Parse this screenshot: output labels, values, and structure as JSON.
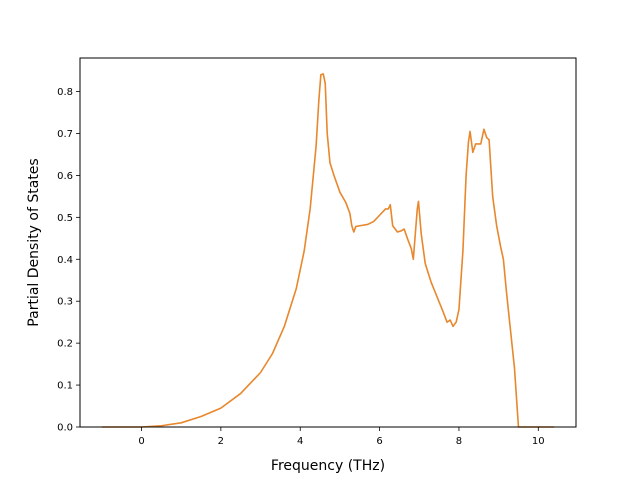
{
  "chart_data": {
    "type": "line",
    "title": "",
    "xlabel": "Frequency (THz)",
    "ylabel": "Partial Density of States",
    "xlim": [
      -1.55,
      10.95
    ],
    "ylim": [
      0.0,
      0.88
    ],
    "xticks": [
      0,
      2,
      4,
      6,
      8,
      10
    ],
    "yticks": [
      0.0,
      0.1,
      0.2,
      0.3,
      0.4,
      0.5,
      0.6,
      0.7,
      0.8
    ],
    "xtick_labels": [
      "0",
      "2",
      "4",
      "6",
      "8",
      "10"
    ],
    "ytick_labels": [
      "0.0",
      "0.1",
      "0.2",
      "0.3",
      "0.4",
      "0.5",
      "0.6",
      "0.7",
      "0.8"
    ],
    "grid": false,
    "legend": "none",
    "series": [
      {
        "color": "#e8872c",
        "points": [
          [
            -1.0,
            0.0
          ],
          [
            0.0,
            0.0
          ],
          [
            0.5,
            0.003
          ],
          [
            1.0,
            0.01
          ],
          [
            1.5,
            0.025
          ],
          [
            2.0,
            0.045
          ],
          [
            2.5,
            0.08
          ],
          [
            3.0,
            0.13
          ],
          [
            3.3,
            0.175
          ],
          [
            3.6,
            0.24
          ],
          [
            3.9,
            0.33
          ],
          [
            4.1,
            0.42
          ],
          [
            4.25,
            0.52
          ],
          [
            4.4,
            0.67
          ],
          [
            4.47,
            0.78
          ],
          [
            4.52,
            0.84
          ],
          [
            4.58,
            0.842
          ],
          [
            4.63,
            0.82
          ],
          [
            4.68,
            0.7
          ],
          [
            4.75,
            0.63
          ],
          [
            4.85,
            0.6
          ],
          [
            5.0,
            0.56
          ],
          [
            5.15,
            0.535
          ],
          [
            5.25,
            0.51
          ],
          [
            5.3,
            0.48
          ],
          [
            5.35,
            0.465
          ],
          [
            5.4,
            0.478
          ],
          [
            5.5,
            0.48
          ],
          [
            5.7,
            0.483
          ],
          [
            5.85,
            0.49
          ],
          [
            6.0,
            0.505
          ],
          [
            6.15,
            0.52
          ],
          [
            6.22,
            0.52
          ],
          [
            6.27,
            0.53
          ],
          [
            6.33,
            0.48
          ],
          [
            6.45,
            0.465
          ],
          [
            6.55,
            0.468
          ],
          [
            6.62,
            0.472
          ],
          [
            6.7,
            0.45
          ],
          [
            6.8,
            0.425
          ],
          [
            6.85,
            0.4
          ],
          [
            6.9,
            0.46
          ],
          [
            6.95,
            0.52
          ],
          [
            6.98,
            0.538
          ],
          [
            7.05,
            0.46
          ],
          [
            7.15,
            0.39
          ],
          [
            7.3,
            0.345
          ],
          [
            7.45,
            0.31
          ],
          [
            7.6,
            0.275
          ],
          [
            7.7,
            0.25
          ],
          [
            7.78,
            0.255
          ],
          [
            7.85,
            0.24
          ],
          [
            7.93,
            0.25
          ],
          [
            8.0,
            0.28
          ],
          [
            8.1,
            0.42
          ],
          [
            8.18,
            0.6
          ],
          [
            8.24,
            0.68
          ],
          [
            8.28,
            0.705
          ],
          [
            8.35,
            0.655
          ],
          [
            8.42,
            0.675
          ],
          [
            8.55,
            0.675
          ],
          [
            8.63,
            0.71
          ],
          [
            8.7,
            0.69
          ],
          [
            8.76,
            0.685
          ],
          [
            8.85,
            0.55
          ],
          [
            8.95,
            0.48
          ],
          [
            9.05,
            0.43
          ],
          [
            9.12,
            0.4
          ],
          [
            9.2,
            0.32
          ],
          [
            9.3,
            0.23
          ],
          [
            9.4,
            0.14
          ],
          [
            9.5,
            0.0
          ],
          [
            10.0,
            0.0
          ],
          [
            10.4,
            0.0
          ]
        ]
      }
    ]
  }
}
